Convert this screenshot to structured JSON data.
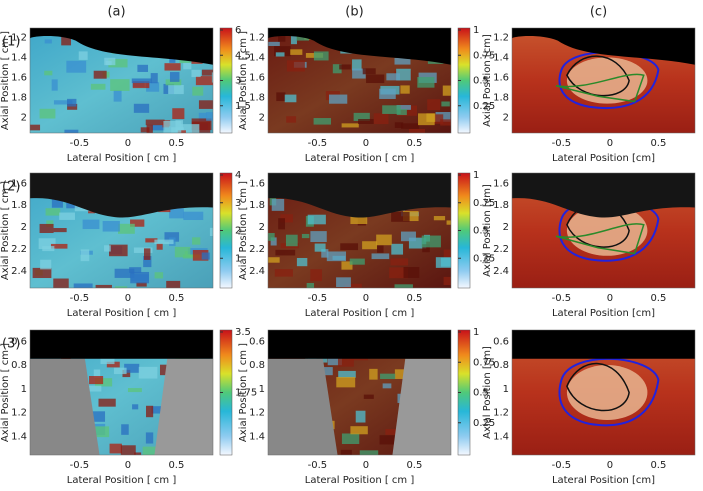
{
  "columns": [
    "(a)",
    "(b)",
    "(c)"
  ],
  "rows": [
    {
      "label": "(1)",
      "panels": [
        {
          "y_label": "Axial Position [ cm ]",
          "x_label": "Lateral Position [ cm ]",
          "y_ticks": [
            "1.2",
            "1.4",
            "1.6",
            "1.8",
            "2"
          ],
          "x_ticks": [
            "-0.5",
            "0",
            "0.5"
          ],
          "colorbar": [
            "6",
            "4.5",
            "3",
            "1.5"
          ]
        },
        {
          "y_label": "Axial Position [ cm ]",
          "x_label": "Lateral Position [ cm ]",
          "y_ticks": [
            "1.2",
            "1.4",
            "1.6",
            "1.8",
            "2"
          ],
          "x_ticks": [
            "-0.5",
            "0",
            "0.5"
          ],
          "colorbar": [
            "1",
            "0.75",
            "0.5",
            "0.25"
          ]
        },
        {
          "y_label": "Axial Position [cm]",
          "x_label": "Lateral Position [cm]",
          "y_ticks": [
            "1.2",
            "1.4",
            "1.6",
            "1.8",
            "2"
          ],
          "x_ticks": [
            "-0.5",
            "0",
            "0.5"
          ]
        }
      ]
    },
    {
      "label": "(2)",
      "panels": [
        {
          "y_label": "Axial Position [ cm ]",
          "x_label": "Lateral Position [ cm ]",
          "y_ticks": [
            "1.6",
            "1.8",
            "2",
            "2.2",
            "2.4"
          ],
          "x_ticks": [
            "-0.5",
            "0",
            "0.5"
          ],
          "colorbar": [
            "4",
            "3",
            "2",
            "1"
          ]
        },
        {
          "y_label": "Axial Position [ cm ]",
          "x_label": "Lateral Position [ cm ]",
          "y_ticks": [
            "1.6",
            "1.8",
            "2",
            "2.2",
            "2.4"
          ],
          "x_ticks": [
            "-0.5",
            "0",
            "0.5"
          ],
          "colorbar": [
            "1",
            "0.75",
            "0.5",
            "0.25"
          ]
        },
        {
          "y_label": "Axial Position [cm]",
          "x_label": "Lateral Position [cm]",
          "y_ticks": [
            "1.6",
            "1.8",
            "2",
            "2.2",
            "2.4"
          ],
          "x_ticks": [
            "-0.5",
            "0",
            "0.5"
          ]
        }
      ]
    },
    {
      "label": "(3)",
      "panels": [
        {
          "y_label": "Axial Position [ cm ]",
          "x_label": "Lateral Position [ cm ]",
          "y_ticks": [
            "0.6",
            "0.8",
            "1",
            "1.2",
            "1.4"
          ],
          "x_ticks": [
            "-0.5",
            "0",
            "0.5"
          ],
          "colorbar": [
            "3.5",
            "1.75"
          ]
        },
        {
          "y_label": "Axial Position [ cm ]",
          "x_label": "Lateral Position [ cm ]",
          "y_ticks": [
            "0.6",
            "0.8",
            "1",
            "1.2",
            "1.4"
          ],
          "x_ticks": [
            "-0.5",
            "0",
            "0.5"
          ],
          "colorbar": [
            "1",
            "0.75",
            "0.5",
            "0.25"
          ]
        },
        {
          "y_label": "Axial Position [cm]",
          "x_label": "Lateral Position [cm]",
          "y_ticks": [
            "0.6",
            "0.8",
            "1",
            "1.2",
            "1.4"
          ],
          "x_ticks": [
            "-0.5",
            "0",
            "0.5"
          ]
        }
      ]
    }
  ]
}
